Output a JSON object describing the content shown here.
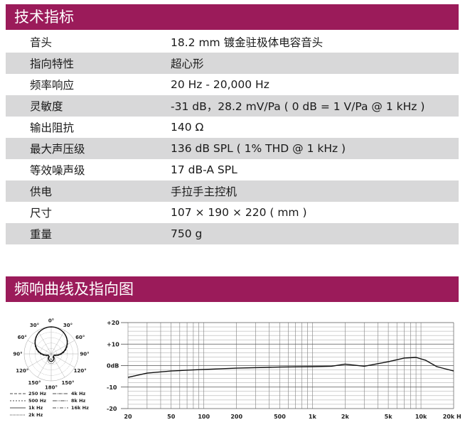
{
  "spec_section": {
    "title": "技术指标",
    "rows": [
      {
        "label": "音头",
        "value": "18.2 mm 镀金驻极体电容音头"
      },
      {
        "label": "指向特性",
        "value": "超心形"
      },
      {
        "label": "频率响应",
        "value": "20 Hz - 20,000 Hz"
      },
      {
        "label": "灵敏度",
        "value": "-31 dB，28.2 mV/Pa ( 0 dB = 1 V/Pa @ 1 kHz )"
      },
      {
        "label": "输出阻抗",
        "value": "140 Ω"
      },
      {
        "label": "最大声压级",
        "value": "136 dB SPL ( 1% THD @ 1 kHz )"
      },
      {
        "label": "等效噪声级",
        "value": "17 dB-A SPL"
      },
      {
        "label": "供电",
        "value": "手拉手主控机"
      },
      {
        "label": "尺寸",
        "value": "107 × 190 × 220 ( mm )"
      },
      {
        "label": "重量",
        "value": "750 g"
      }
    ]
  },
  "curve_section": {
    "title": "频响曲线及指向图"
  },
  "polar_pattern": {
    "angle_labels": [
      "0°",
      "30°",
      "30°",
      "60°",
      "60°",
      "90°",
      "90°",
      "120°",
      "120°",
      "150°",
      "150°",
      "180°"
    ],
    "legend": [
      "250 Hz",
      "4k Hz",
      "500 Hz",
      "8k Hz",
      "1k Hz",
      "16k Hz",
      "2k Hz"
    ]
  },
  "colors": {
    "header_bg": "#9b1b5a",
    "row_shade": "#d8d8d9"
  },
  "chart_data": {
    "type": "line",
    "x_scale": "log",
    "xlim": [
      20,
      20000
    ],
    "ylim": [
      -20,
      20
    ],
    "x_ticks": [
      20,
      50,
      100,
      200,
      500,
      1000,
      2000,
      5000,
      10000,
      20000
    ],
    "x_tick_labels": [
      "20",
      "50",
      "100",
      "200",
      "500",
      "1k",
      "2k",
      "5k",
      "10k",
      "20k Hz"
    ],
    "y_ticks": [
      20,
      10,
      0,
      -10,
      -20
    ],
    "y_tick_labels": [
      "+20",
      "+10",
      "0dB",
      "-10",
      "-20"
    ],
    "grid": true,
    "series": [
      {
        "x": [
          20,
          30,
          50,
          80,
          100,
          200,
          500,
          1000,
          1500,
          2000,
          3000,
          5000,
          7000,
          9000,
          11000,
          14000,
          20000
        ],
        "y": [
          -5.5,
          -3.5,
          -2.5,
          -2,
          -1.8,
          -1.2,
          -0.7,
          -0.5,
          -0.3,
          0.7,
          -0.3,
          1.8,
          3.5,
          3.8,
          2.5,
          -0.5,
          -2.5
        ]
      }
    ]
  }
}
